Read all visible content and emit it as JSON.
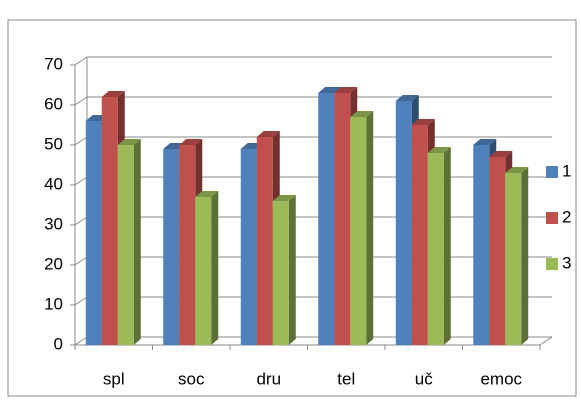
{
  "chart_data": {
    "type": "bar3d",
    "categories": [
      "spl",
      "soc",
      "dru",
      "tel",
      "uč",
      "emoc"
    ],
    "series": [
      {
        "name": "1",
        "color": "#4f81bd",
        "values": [
          56,
          49,
          49,
          63,
          61,
          50
        ]
      },
      {
        "name": "2",
        "color": "#c0504d",
        "values": [
          62,
          50,
          52,
          63,
          55,
          47
        ]
      },
      {
        "name": "3",
        "color": "#9bbb59",
        "values": [
          50,
          37,
          36,
          57,
          48,
          43
        ]
      }
    ],
    "ylim": [
      0,
      70
    ],
    "yticks": [
      0,
      10,
      20,
      30,
      40,
      50,
      60,
      70
    ],
    "grid": true,
    "legend": "right"
  }
}
